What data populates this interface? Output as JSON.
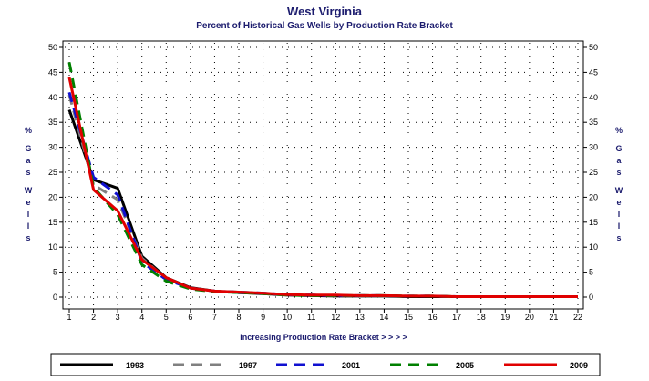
{
  "chart_data": {
    "type": "line",
    "title": "West Virginia",
    "subtitle": "Percent of Historical Gas Wells by Production Rate Bracket",
    "xlabel": "Increasing Production Rate Bracket > > > >",
    "ylabel_left": "% Gas Wells",
    "ylabel_right": "% Gas Wells",
    "ylim": [
      0,
      50
    ],
    "y_ticks": [
      0,
      5,
      10,
      15,
      20,
      25,
      30,
      35,
      40,
      45,
      50
    ],
    "x": [
      1,
      2,
      3,
      4,
      5,
      6,
      7,
      8,
      9,
      10,
      11,
      12,
      13,
      14,
      15,
      16,
      17,
      18,
      19,
      20,
      21,
      22
    ],
    "grid": true,
    "legend_position": "bottom",
    "series": [
      {
        "name": "1993",
        "color": "#000000",
        "dash": "solid",
        "values": [
          37.5,
          23.5,
          21.8,
          8.2,
          3.9,
          1.9,
          1.2,
          0.9,
          0.7,
          0.4,
          0.3,
          0.2,
          0.2,
          0.2,
          0.1,
          0.1,
          0.1,
          0.1,
          0.1,
          0.1,
          0.1,
          0.1
        ]
      },
      {
        "name": "1997",
        "color": "#808080",
        "dash": "dashed",
        "values": [
          40.5,
          22.5,
          19.5,
          7.8,
          3.7,
          1.8,
          1.2,
          1.0,
          0.8,
          0.5,
          0.4,
          0.3,
          0.3,
          0.3,
          0.2,
          0.2,
          0.1,
          0.1,
          0.1,
          0.1,
          0.1,
          0.1
        ]
      },
      {
        "name": "2001",
        "color": "#1010d0",
        "dash": "dashed",
        "values": [
          41.0,
          24.0,
          20.5,
          7.0,
          3.5,
          1.8,
          1.2,
          1.0,
          0.8,
          0.5,
          0.4,
          0.3,
          0.3,
          0.3,
          0.2,
          0.2,
          0.1,
          0.1,
          0.1,
          0.1,
          0.1,
          0.1
        ]
      },
      {
        "name": "2005",
        "color": "#008000",
        "dash": "dashed",
        "values": [
          47.0,
          22.0,
          16.5,
          6.5,
          3.2,
          1.6,
          1.1,
          0.9,
          0.7,
          0.4,
          0.3,
          0.3,
          0.3,
          0.3,
          0.2,
          0.2,
          0.1,
          0.1,
          0.1,
          0.1,
          0.1,
          0.1
        ]
      },
      {
        "name": "2009",
        "color": "#e00000",
        "dash": "solid",
        "values": [
          44.0,
          21.5,
          17.3,
          7.5,
          3.9,
          1.8,
          1.2,
          1.0,
          0.8,
          0.5,
          0.4,
          0.4,
          0.3,
          0.3,
          0.2,
          0.2,
          0.1,
          0.1,
          0.1,
          0.1,
          0.1,
          0.1
        ]
      }
    ]
  }
}
